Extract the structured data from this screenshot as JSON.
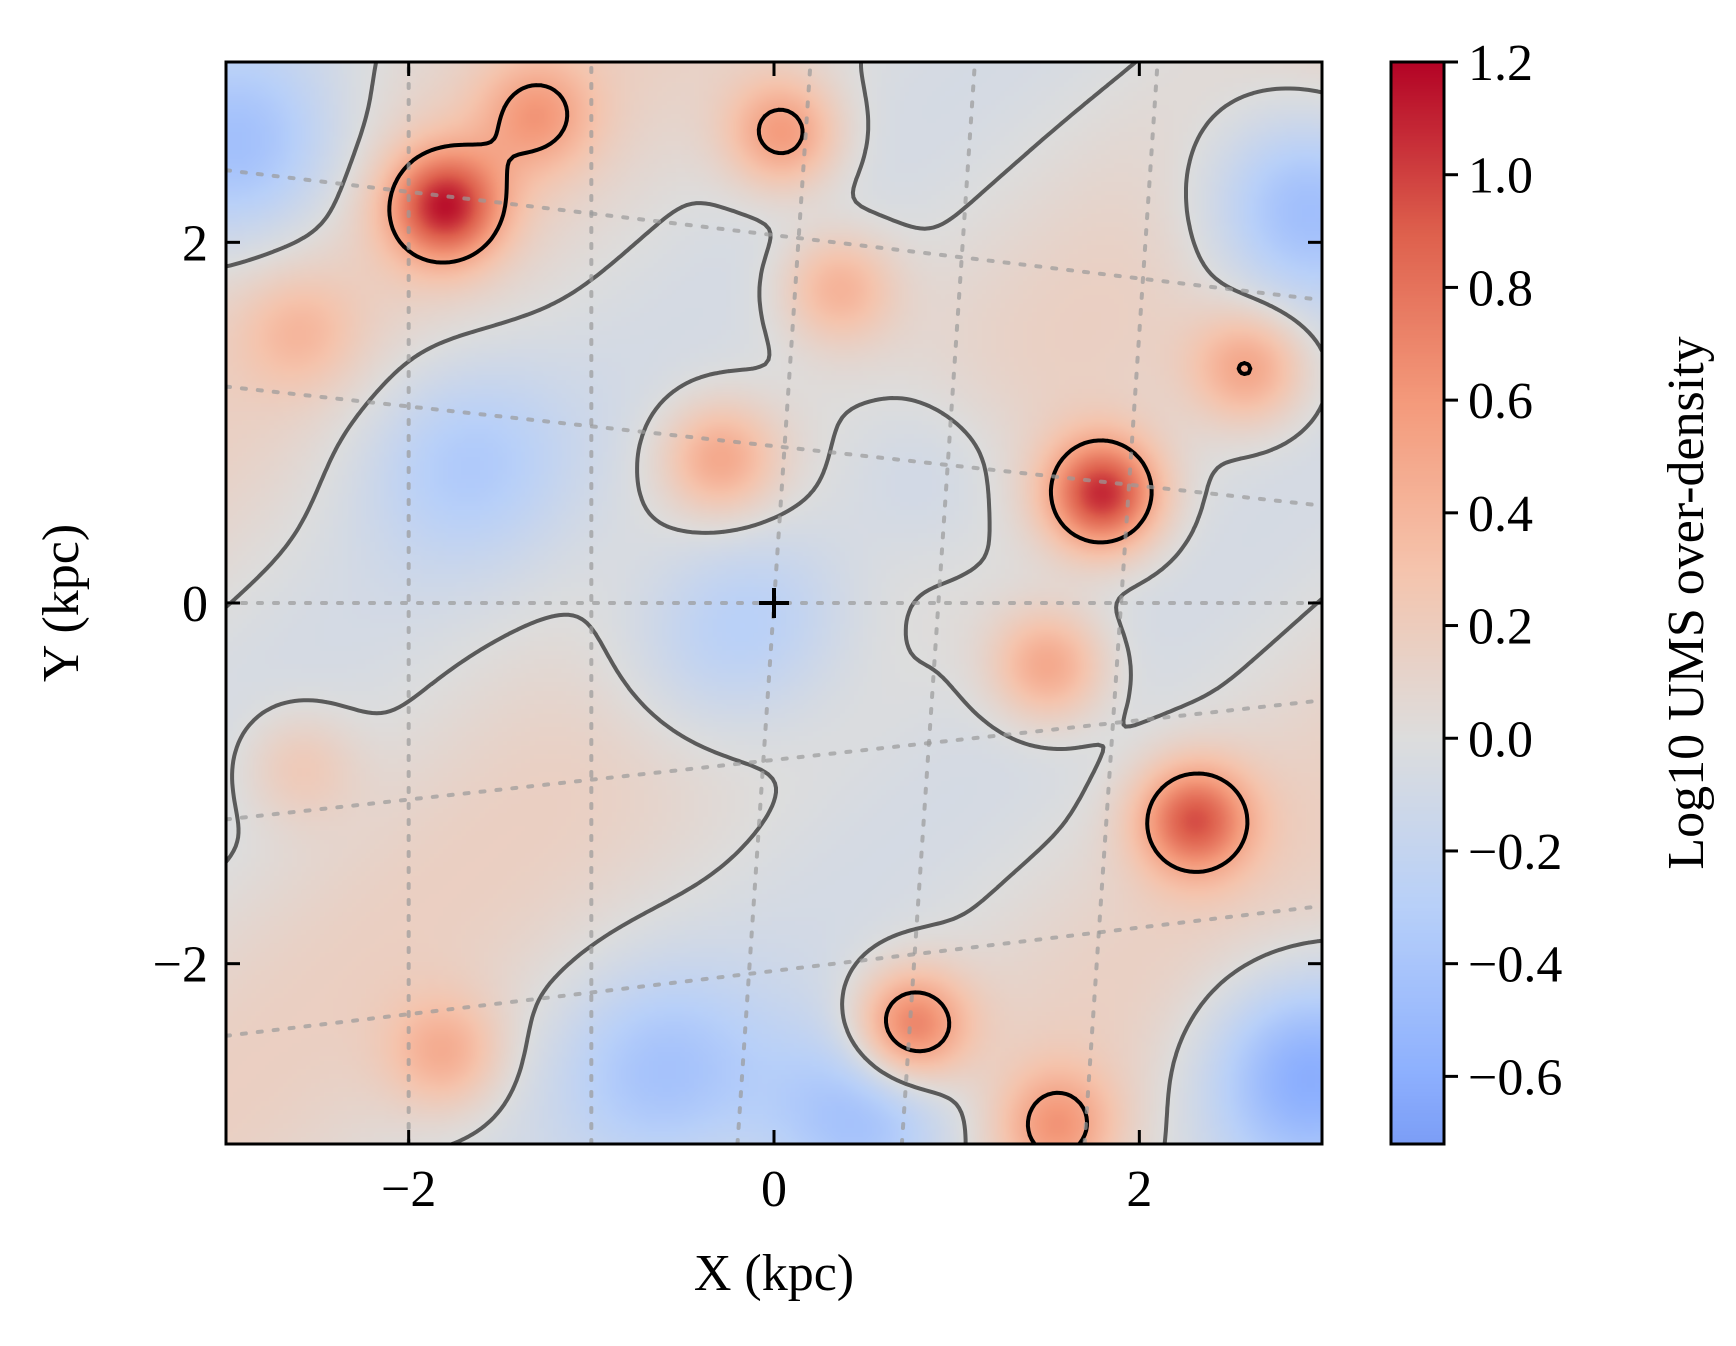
{
  "chart_data": {
    "type": "heatmap",
    "xlabel": "X (kpc)",
    "ylabel": "Y (kpc)",
    "xlim": [
      -3,
      3
    ],
    "ylim": [
      -3,
      3
    ],
    "xticks": [
      -2,
      0,
      2
    ],
    "yticks": [
      -2,
      0,
      2
    ],
    "xtick_labels": [
      "−2",
      "0",
      "2"
    ],
    "ytick_labels": [
      "−2",
      "0",
      "2"
    ],
    "grid": true,
    "colormap": "coolwarm",
    "colorbar": {
      "label": "Log10 UMS over-density",
      "range": [
        -0.72,
        1.2
      ],
      "ticks": [
        1.2,
        1.0,
        0.8,
        0.6,
        0.4,
        0.2,
        0.0,
        -0.2,
        -0.4,
        -0.6
      ],
      "tick_labels": [
        "1.2",
        "1.0",
        "0.8",
        "0.6",
        "0.4",
        "0.2",
        "0.0",
        "−0.2",
        "−0.4",
        "−0.6"
      ]
    },
    "marker": {
      "x": 0,
      "y": 0,
      "symbol": "+"
    },
    "contour_levels": [
      0.0,
      0.5
    ],
    "overdensity_peaks": [
      {
        "x": -1.8,
        "y": 2.2,
        "value": 1.0
      },
      {
        "x": -1.3,
        "y": 2.7,
        "value": 0.45
      },
      {
        "x": 0.05,
        "y": 2.6,
        "value": 0.6
      },
      {
        "x": 0.35,
        "y": 1.75,
        "value": 0.45
      },
      {
        "x": -0.3,
        "y": 0.8,
        "value": 0.5
      },
      {
        "x": 1.8,
        "y": 0.6,
        "value": 1.05
      },
      {
        "x": 2.6,
        "y": 1.3,
        "value": 0.5
      },
      {
        "x": 1.5,
        "y": -0.35,
        "value": 0.55
      },
      {
        "x": 2.3,
        "y": -1.2,
        "value": 0.85
      },
      {
        "x": 0.75,
        "y": -2.35,
        "value": 0.8
      },
      {
        "x": -1.8,
        "y": -2.5,
        "value": 0.4
      },
      {
        "x": 1.55,
        "y": -2.9,
        "value": 0.5
      },
      {
        "x": -2.6,
        "y": -0.9,
        "value": 0.25
      },
      {
        "x": -2.6,
        "y": 1.5,
        "value": 0.25
      }
    ],
    "underdensity_troughs": [
      {
        "x": -1.7,
        "y": 0.8,
        "value": -0.3
      },
      {
        "x": 0.0,
        "y": 0.0,
        "value": -0.3
      },
      {
        "x": 0.8,
        "y": 0.7,
        "value": -0.25
      },
      {
        "x": 2.9,
        "y": 2.2,
        "value": -0.6
      },
      {
        "x": 2.9,
        "y": -2.6,
        "value": -0.6
      },
      {
        "x": -2.9,
        "y": 2.5,
        "value": -0.45
      },
      {
        "x": -0.6,
        "y": -2.6,
        "value": -0.35
      },
      {
        "x": 0.5,
        "y": -2.9,
        "value": -0.55
      },
      {
        "x": -0.4,
        "y": -0.3,
        "value": -0.25
      }
    ]
  }
}
